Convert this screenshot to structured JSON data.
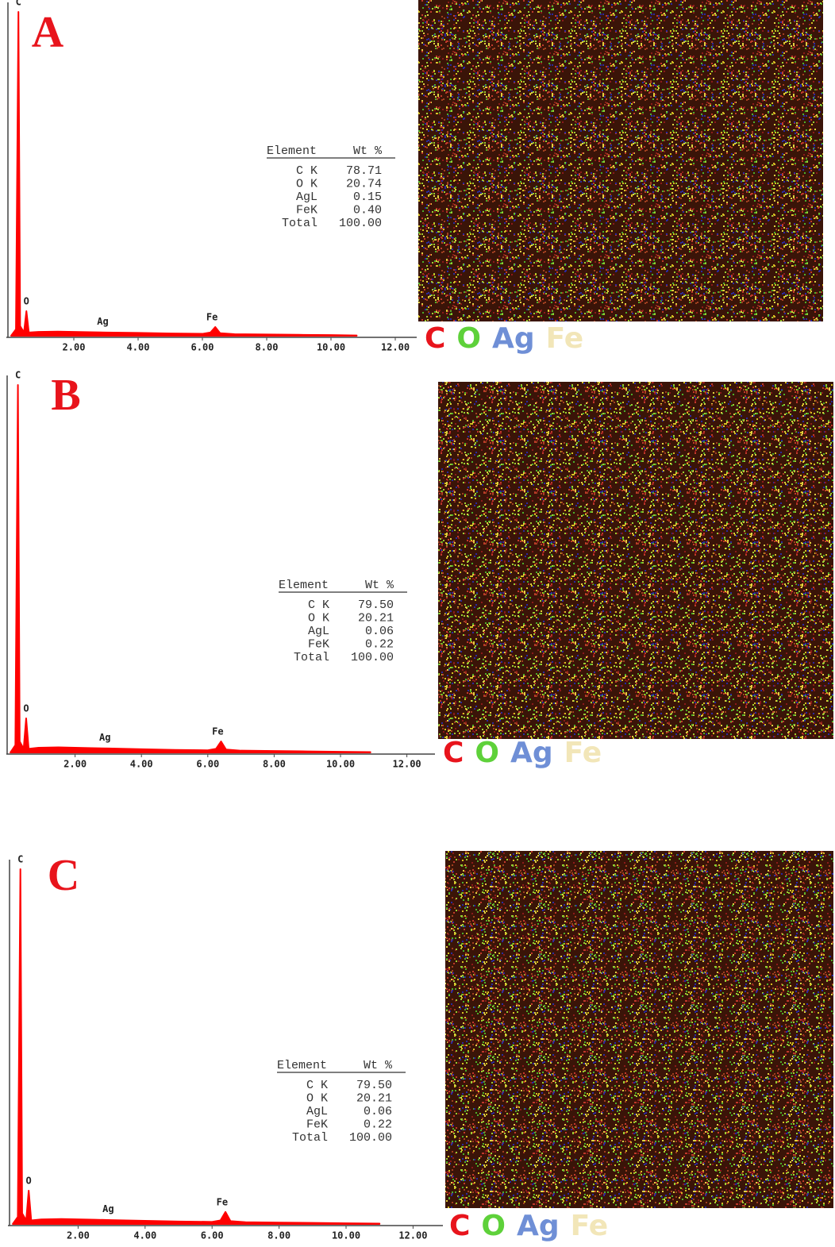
{
  "chart_data": [
    {
      "type": "line",
      "panel": "A",
      "x": [
        0.05,
        0.2,
        0.277,
        0.33,
        0.45,
        0.525,
        0.6,
        0.9,
        1.5,
        2.5,
        3.0,
        4.0,
        5.0,
        6.0,
        6.25,
        6.4,
        6.55,
        7.0,
        8.0,
        9.0,
        10.0,
        10.8
      ],
      "series": [
        {
          "color": "#ff0000",
          "values": [
            0,
            2,
            100,
            3,
            1,
            7.6,
            1,
            1.2,
            1.3,
            1.1,
            1.0,
            0.9,
            0.7,
            0.6,
            1.0,
            2.7,
            0.8,
            0.5,
            0.4,
            0.3,
            0.2,
            0.1
          ]
        }
      ],
      "xlim": [
        0,
        12.6
      ],
      "ylim": [
        0,
        100
      ],
      "xticks": [
        {
          "value": 2,
          "label": "2.00"
        },
        {
          "value": 4,
          "label": "4.00"
        },
        {
          "value": 6,
          "label": "6.00"
        },
        {
          "value": 8,
          "label": "8.00"
        },
        {
          "value": 10,
          "label": "10.00"
        },
        {
          "value": 12,
          "label": "12.00"
        }
      ],
      "annotations": [
        {
          "text": "C",
          "x": 0.277,
          "y": 100
        },
        {
          "text": "O",
          "x": 0.525,
          "y": 7.6
        },
        {
          "text": "Ag",
          "x": 2.9,
          "y": 1.3
        },
        {
          "text": "Fe",
          "x": 6.3,
          "y": 2.7
        }
      ],
      "table": {
        "header": [
          "Element",
          "Wt %"
        ],
        "rows": [
          [
            "C K",
            "78.71"
          ],
          [
            "O K",
            "20.74"
          ],
          [
            "AgL",
            "0.15"
          ],
          [
            "FeK",
            "0.40"
          ],
          [
            "Total",
            "100.00"
          ]
        ]
      },
      "map_legend": [
        {
          "text": "C",
          "color": "#e8141c"
        },
        {
          "text": "O",
          "color": "#5ed13a"
        },
        {
          "text": "Ag",
          "color": "#6f8fd6"
        },
        {
          "text": "Fe",
          "color": "#f2e6b8"
        }
      ]
    },
    {
      "type": "line",
      "panel": "B",
      "x": [
        0.05,
        0.2,
        0.277,
        0.33,
        0.45,
        0.525,
        0.6,
        0.9,
        1.5,
        2.5,
        3.0,
        4.0,
        5.0,
        6.0,
        6.25,
        6.4,
        6.55,
        7.0,
        8.0,
        9.0,
        10.0,
        10.9
      ],
      "series": [
        {
          "color": "#ff0000",
          "values": [
            0,
            2,
            100,
            3,
            1,
            9.3,
            1,
            1.3,
            1.4,
            1.2,
            1.1,
            0.9,
            0.7,
            0.6,
            1.0,
            3.0,
            0.8,
            0.5,
            0.4,
            0.3,
            0.2,
            0.1
          ]
        }
      ],
      "xlim": [
        0,
        12.8
      ],
      "ylim": [
        0,
        100
      ],
      "xticks": [
        {
          "value": 2,
          "label": "2.00"
        },
        {
          "value": 4,
          "label": "4.00"
        },
        {
          "value": 6,
          "label": "6.00"
        },
        {
          "value": 8,
          "label": "8.00"
        },
        {
          "value": 10,
          "label": "10.00"
        },
        {
          "value": 12,
          "label": "12.00"
        }
      ],
      "annotations": [
        {
          "text": "C",
          "x": 0.277,
          "y": 100
        },
        {
          "text": "O",
          "x": 0.525,
          "y": 9.3
        },
        {
          "text": "Ag",
          "x": 2.9,
          "y": 1.4
        },
        {
          "text": "Fe",
          "x": 6.3,
          "y": 3.0
        }
      ],
      "table": {
        "header": [
          "Element",
          "Wt %"
        ],
        "rows": [
          [
            "C K",
            "79.50"
          ],
          [
            "O K",
            "20.21"
          ],
          [
            "AgL",
            "0.06"
          ],
          [
            "FeK",
            "0.22"
          ],
          [
            "Total",
            "100.00"
          ]
        ]
      },
      "map_legend": [
        {
          "text": "C",
          "color": "#e8141c"
        },
        {
          "text": "O",
          "color": "#5ed13a"
        },
        {
          "text": "Ag",
          "color": "#6f8fd6"
        },
        {
          "text": "Fe",
          "color": "#f2e6b8"
        }
      ]
    },
    {
      "type": "line",
      "panel": "C",
      "x": [
        0.05,
        0.2,
        0.277,
        0.33,
        0.45,
        0.525,
        0.6,
        0.9,
        1.5,
        2.5,
        3.0,
        4.0,
        5.0,
        6.0,
        6.25,
        6.4,
        6.55,
        7.0,
        8.0,
        9.0,
        10.0,
        11.0
      ],
      "series": [
        {
          "color": "#ff0000",
          "values": [
            0,
            2,
            100,
            3,
            1,
            9.4,
            1,
            1.3,
            1.4,
            1.2,
            1.1,
            0.9,
            0.7,
            0.6,
            1.0,
            3.4,
            0.8,
            0.5,
            0.4,
            0.3,
            0.2,
            0.1
          ]
        }
      ],
      "xlim": [
        0,
        12.9
      ],
      "ylim": [
        0,
        100
      ],
      "xticks": [
        {
          "value": 2,
          "label": "2.00"
        },
        {
          "value": 4,
          "label": "4.00"
        },
        {
          "value": 6,
          "label": "6.00"
        },
        {
          "value": 8,
          "label": "8.00"
        },
        {
          "value": 10,
          "label": "10.00"
        },
        {
          "value": 12,
          "label": "12.00"
        }
      ],
      "annotations": [
        {
          "text": "C",
          "x": 0.277,
          "y": 100
        },
        {
          "text": "O",
          "x": 0.525,
          "y": 9.4
        },
        {
          "text": "Ag",
          "x": 2.9,
          "y": 1.4
        },
        {
          "text": "Fe",
          "x": 6.3,
          "y": 3.4
        }
      ],
      "table": {
        "header": [
          "Element",
          "Wt %"
        ],
        "rows": [
          [
            "C K",
            "79.50"
          ],
          [
            "O K",
            "20.21"
          ],
          [
            "AgL",
            "0.06"
          ],
          [
            "FeK",
            "0.22"
          ],
          [
            "Total",
            "100.00"
          ]
        ]
      },
      "map_legend": [
        {
          "text": "C",
          "color": "#e8141c"
        },
        {
          "text": "O",
          "color": "#5ed13a"
        },
        {
          "text": "Ag",
          "color": "#6f8fd6"
        },
        {
          "text": "Fe",
          "color": "#f2e6b8"
        }
      ]
    }
  ]
}
